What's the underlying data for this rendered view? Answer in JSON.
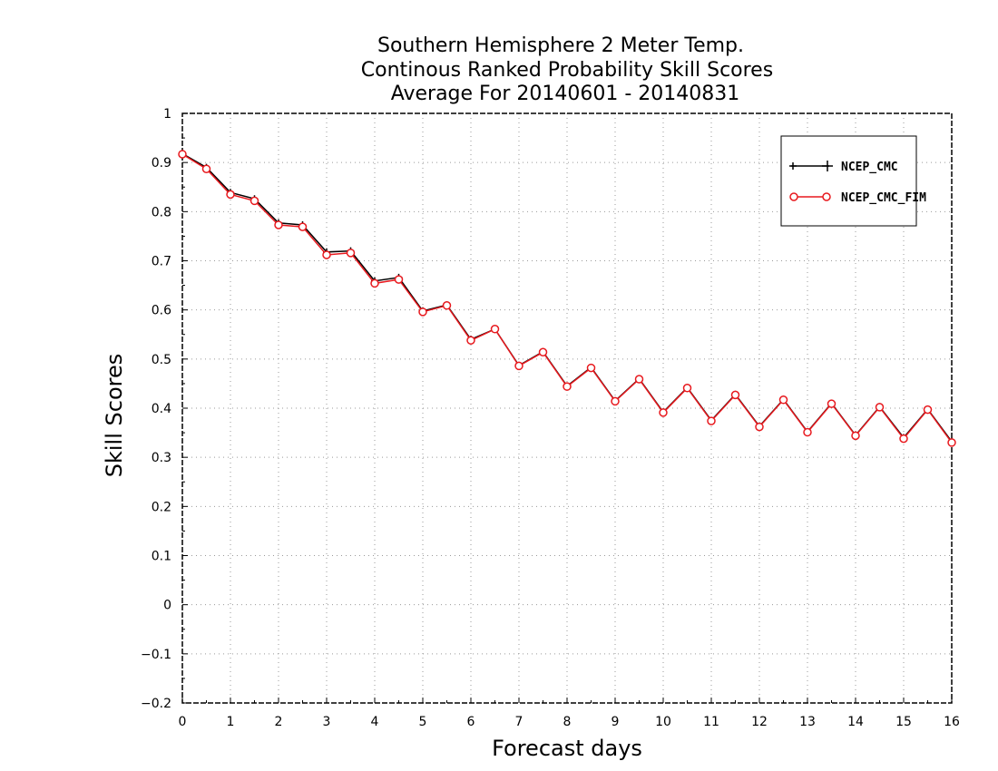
{
  "chart_data": {
    "type": "line",
    "title": [
      "Southern Hemisphere 2 Meter Temp.",
      "Continous Ranked Probability Skill Scores",
      "Average For 20140601 - 20140831"
    ],
    "xlabel": "Forecast days",
    "ylabel": "Skill Scores",
    "xlim": [
      0,
      16
    ],
    "ylim": [
      -0.2,
      1
    ],
    "xticks": [
      "0",
      "1",
      "2",
      "3",
      "4",
      "5",
      "6",
      "7",
      "8",
      "9",
      "10",
      "11",
      "12",
      "13",
      "14",
      "15",
      "16"
    ],
    "yticks": [
      "−0.2",
      "−0.1",
      "0",
      "0.1",
      "0.2",
      "0.3",
      "0.4",
      "0.5",
      "0.6",
      "0.7",
      "0.8",
      "0.9",
      "1"
    ],
    "grid": true,
    "legend_position": "top-right",
    "x": [
      0,
      0.5,
      1,
      1.5,
      2,
      2.5,
      3,
      3.5,
      4,
      4.5,
      5,
      5.5,
      6,
      6.5,
      7,
      7.5,
      8,
      8.5,
      9,
      9.5,
      10,
      10.5,
      11,
      11.5,
      12,
      12.5,
      13,
      13.5,
      14,
      14.5,
      15,
      15.5,
      16
    ],
    "series": [
      {
        "name": "NCEP_CMC",
        "color": "#000000",
        "marker": "plus",
        "values": [
          0.918,
          0.89,
          0.839,
          0.826,
          0.777,
          0.773,
          0.718,
          0.72,
          0.659,
          0.666,
          0.598,
          0.61,
          0.54,
          0.561,
          0.487,
          0.515,
          0.445,
          0.483,
          0.415,
          0.46,
          0.392,
          0.442,
          0.375,
          0.428,
          0.363,
          0.418,
          0.352,
          0.41,
          0.345,
          0.403,
          0.34,
          0.398,
          0.332
        ]
      },
      {
        "name": "NCEP_CMC_FIM",
        "color": "#e8191e",
        "marker": "circle",
        "values": [
          0.917,
          0.887,
          0.835,
          0.822,
          0.773,
          0.769,
          0.712,
          0.716,
          0.654,
          0.662,
          0.596,
          0.609,
          0.538,
          0.561,
          0.486,
          0.514,
          0.444,
          0.482,
          0.414,
          0.459,
          0.391,
          0.441,
          0.374,
          0.427,
          0.362,
          0.417,
          0.351,
          0.409,
          0.344,
          0.402,
          0.338,
          0.397,
          0.33
        ]
      }
    ]
  }
}
